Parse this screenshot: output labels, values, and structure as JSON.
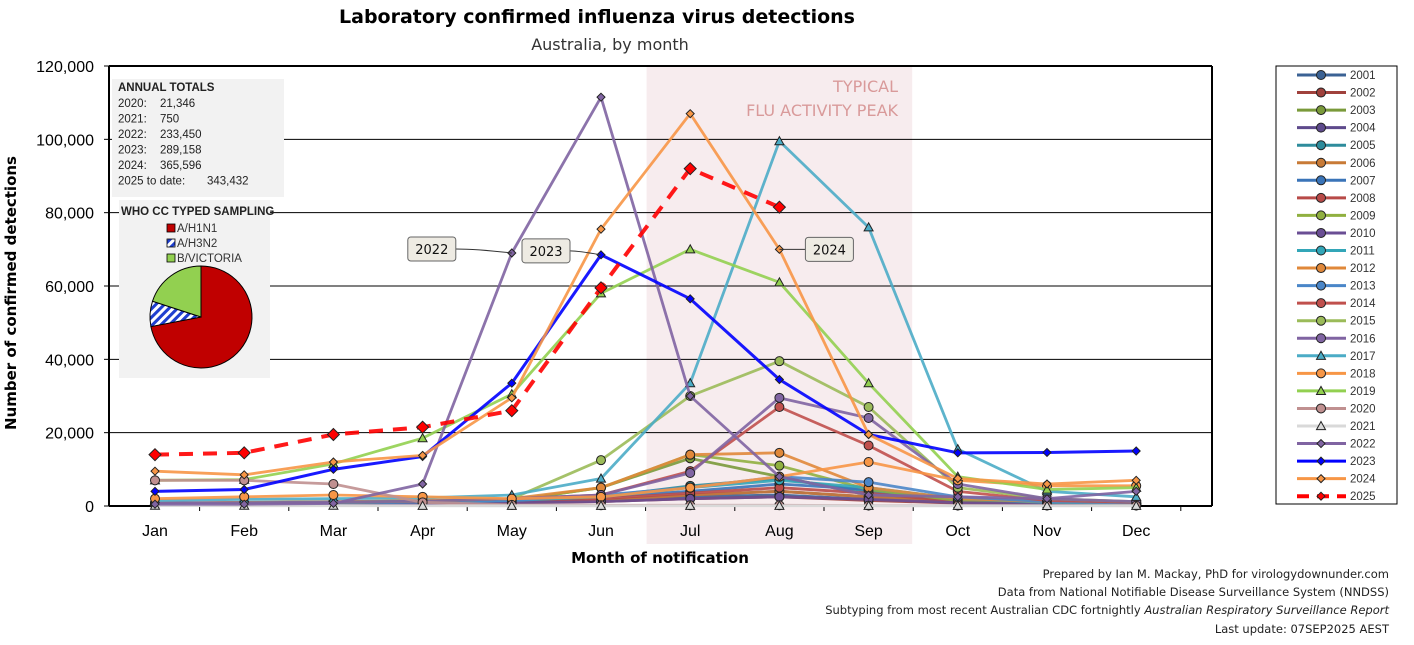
{
  "chart_data": {
    "type": "line",
    "title": "Laboratory confirmed influenza virus detections",
    "subtitle": "Australia, by month",
    "xlabel": "Month of notification",
    "ylabel": "Number of confirmed detections",
    "ylim": [
      0,
      120000
    ],
    "yticks": [
      0,
      20000,
      40000,
      60000,
      80000,
      100000,
      120000
    ],
    "ytick_labels": [
      "0",
      "20,000",
      "40,000",
      "60,000",
      "80,000",
      "100,000",
      "120,000"
    ],
    "grid": "horizontal",
    "legend_position": "right",
    "categories": [
      "Jan",
      "Feb",
      "Mar",
      "Apr",
      "May",
      "Jun",
      "Jul",
      "Aug",
      "Sep",
      "Oct",
      "Nov",
      "Dec"
    ],
    "shaded_region": {
      "from": "Jul",
      "to": "Sep",
      "label_line1": "TYPICAL",
      "label_line2": "FLU ACTIVITY PEAK",
      "color": "#f7ecee"
    },
    "series": [
      {
        "name": "2001",
        "color": "#3b6294",
        "marker": "circle",
        "values": [
          500,
          600,
          700,
          800,
          1000,
          1500,
          2500,
          3000,
          1800,
          900,
          600,
          500
        ]
      },
      {
        "name": "2002",
        "color": "#a0413c",
        "marker": "circle",
        "values": [
          400,
          500,
          600,
          700,
          900,
          1200,
          2000,
          2500,
          1500,
          800,
          500,
          400
        ]
      },
      {
        "name": "2003",
        "color": "#7a9a3a",
        "marker": "circle",
        "values": [
          500,
          600,
          700,
          900,
          1500,
          5000,
          13000,
          8000,
          3000,
          1200,
          700,
          500
        ]
      },
      {
        "name": "2004",
        "color": "#5e4a8c",
        "marker": "circle",
        "values": [
          400,
          500,
          600,
          700,
          900,
          1500,
          3000,
          4000,
          2500,
          1000,
          600,
          500
        ]
      },
      {
        "name": "2005",
        "color": "#2e8c9c",
        "marker": "circle",
        "values": [
          500,
          600,
          700,
          900,
          1200,
          2500,
          5500,
          7500,
          4000,
          1500,
          800,
          600
        ]
      },
      {
        "name": "2006",
        "color": "#c87a36",
        "marker": "circle",
        "values": [
          400,
          500,
          600,
          700,
          900,
          1500,
          3000,
          4000,
          2500,
          1000,
          600,
          500
        ]
      },
      {
        "name": "2007",
        "color": "#3a74b8",
        "marker": "circle",
        "values": [
          500,
          600,
          700,
          900,
          1200,
          2500,
          4000,
          6000,
          4500,
          1500,
          800,
          600
        ]
      },
      {
        "name": "2008",
        "color": "#b84a48",
        "marker": "circle",
        "values": [
          400,
          500,
          600,
          800,
          1000,
          2000,
          3500,
          5000,
          3500,
          1200,
          700,
          500
        ]
      },
      {
        "name": "2009",
        "color": "#90b040",
        "marker": "circle",
        "values": [
          500,
          600,
          700,
          900,
          1500,
          5000,
          14000,
          11000,
          4500,
          1500,
          800,
          600
        ]
      },
      {
        "name": "2010",
        "color": "#6a4e94",
        "marker": "circle",
        "values": [
          400,
          500,
          600,
          700,
          900,
          1200,
          2000,
          2500,
          1800,
          900,
          600,
          500
        ]
      },
      {
        "name": "2011",
        "color": "#33a6b8",
        "marker": "circle",
        "values": [
          600,
          700,
          900,
          1100,
          1500,
          2500,
          5000,
          7000,
          5000,
          2000,
          1000,
          700
        ]
      },
      {
        "name": "2012",
        "color": "#e0883a",
        "marker": "circle",
        "values": [
          800,
          1000,
          1200,
          1500,
          2000,
          5000,
          14000,
          14500,
          5000,
          2000,
          1200,
          800
        ]
      },
      {
        "name": "2013",
        "color": "#4a86c8",
        "marker": "circle",
        "values": [
          600,
          700,
          900,
          1100,
          1500,
          3000,
          5000,
          8000,
          6500,
          2500,
          1200,
          800
        ]
      },
      {
        "name": "2014",
        "color": "#c0504d",
        "marker": "circle",
        "values": [
          700,
          800,
          1000,
          1300,
          2000,
          3000,
          9500,
          27000,
          16500,
          4000,
          1500,
          1000
        ]
      },
      {
        "name": "2015",
        "color": "#9bbb59",
        "marker": "circle",
        "values": [
          700,
          900,
          1100,
          1300,
          2000,
          12500,
          30000,
          39500,
          27000,
          5000,
          2000,
          1200
        ]
      },
      {
        "name": "2016",
        "color": "#8064a2",
        "marker": "circle",
        "values": [
          800,
          900,
          1100,
          1300,
          2000,
          3000,
          9000,
          29500,
          24000,
          6000,
          2000,
          1200
        ]
      },
      {
        "name": "2017",
        "color": "#4bacc6",
        "marker": "triangle",
        "values": [
          1500,
          1800,
          2000,
          2200,
          3000,
          7500,
          33500,
          99500,
          76000,
          15500,
          4000,
          2500
        ]
      },
      {
        "name": "2018",
        "color": "#f79646",
        "marker": "circle",
        "values": [
          2000,
          2500,
          3000,
          2500,
          2000,
          2500,
          5000,
          8000,
          12000,
          7000,
          5500,
          5500
        ]
      },
      {
        "name": "2019",
        "color": "#92d050",
        "marker": "triangle",
        "values": [
          7000,
          7200,
          11500,
          18500,
          30500,
          58000,
          70000,
          61000,
          33500,
          8000,
          4500,
          5000
        ]
      },
      {
        "name": "2020",
        "color": "#c09090",
        "marker": "circle",
        "values": [
          7000,
          7000,
          6000,
          1000,
          300,
          200,
          200,
          200,
          100,
          100,
          100,
          100
        ]
      },
      {
        "name": "2021",
        "color": "#d9d9d9",
        "marker": "triangle",
        "values": [
          100,
          80,
          80,
          60,
          50,
          50,
          60,
          70,
          60,
          50,
          40,
          50
        ]
      },
      {
        "name": "2022",
        "color": "#8064a2",
        "marker": "diamond",
        "values": [
          500,
          500,
          700,
          6000,
          69000,
          111500,
          30000,
          8000,
          3000,
          2500,
          2000,
          4000
        ]
      },
      {
        "name": "2023",
        "color": "#0000ff",
        "marker": "diamond",
        "values": [
          4000,
          4500,
          10000,
          13500,
          33500,
          68500,
          56500,
          34500,
          19500,
          14500,
          14600,
          15000
        ]
      },
      {
        "name": "2024",
        "color": "#f79646",
        "marker": "diamond",
        "values": [
          9500,
          8500,
          12000,
          13800,
          29500,
          75500,
          107000,
          70000,
          19500,
          7500,
          6000,
          7000
        ]
      },
      {
        "name": "2025",
        "color": "#ff0000",
        "marker": "diamond",
        "dashed": true,
        "values": [
          14000,
          14500,
          19500,
          21500,
          26000,
          59500,
          92000,
          81500,
          null,
          null,
          null,
          null
        ]
      }
    ],
    "callouts": [
      {
        "label": "2022",
        "series": "2022",
        "month": "May"
      },
      {
        "label": "2023",
        "series": "2023",
        "month": "Jun"
      },
      {
        "label": "2024",
        "series": "2024",
        "month": "Aug"
      }
    ],
    "annual_totals": {
      "title": "ANNUAL TOTALS",
      "rows": [
        {
          "year": "2020:",
          "value": "21,346"
        },
        {
          "year": "2021:",
          "value": "750"
        },
        {
          "year": "2022:",
          "value": "233,450"
        },
        {
          "year": "2023:",
          "value": "289,158"
        },
        {
          "year": "2024:",
          "value": "365,596"
        },
        {
          "year": "2025 to date:",
          "value": "343,432"
        }
      ]
    },
    "pie": {
      "type": "pie",
      "title": "WHO CC TYPED SAMPLING",
      "slices": [
        {
          "label": "A/H1N1",
          "value": 72,
          "color": "#c00000",
          "pattern": "solid"
        },
        {
          "label": "A/H3N2",
          "value": 8,
          "color": "#1f3fcf",
          "pattern": "hatched"
        },
        {
          "label": "B/VICTORIA",
          "value": 20,
          "color": "#92d050",
          "pattern": "solid"
        }
      ]
    }
  },
  "footer": {
    "line1": "Prepared by Ian M. Mackay, PhD for virologydownunder.com",
    "line2": "Data from National Notifiable Disease Surveillance System (NNDSS)",
    "line3_prefix": "Subtyping from most recent Australian CDC fortnightly ",
    "line3_italic": "Australian Respiratory Surveillance Report",
    "line4": "Last update: 07SEP2025 AEST"
  }
}
